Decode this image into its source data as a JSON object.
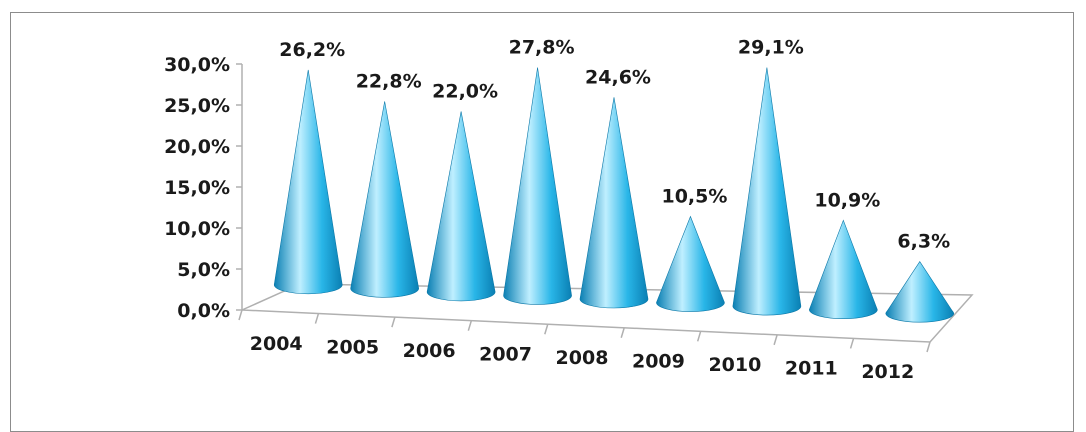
{
  "chart_data": {
    "type": "bar",
    "shape": "cone",
    "categories": [
      "2004",
      "2005",
      "2006",
      "2007",
      "2008",
      "2009",
      "2010",
      "2011",
      "2012"
    ],
    "values": [
      26.2,
      22.8,
      22.0,
      27.8,
      24.6,
      10.5,
      29.1,
      10.9,
      6.3
    ],
    "data_labels": [
      "26,2%",
      "22,8%",
      "22,0%",
      "27,8%",
      "24,6%",
      "10,5%",
      "29,1%",
      "10,9%",
      "6,3%"
    ],
    "y_tick_labels": [
      "0,0%",
      "5,0%",
      "10,0%",
      "15,0%",
      "20,0%",
      "25,0%",
      "30,0%"
    ],
    "ylim": [
      0,
      30
    ],
    "title": "",
    "xlabel": "",
    "ylabel": "",
    "legend": "none",
    "grid": false,
    "colors": {
      "cone_light": "#bfefff",
      "cone_mid": "#29b6e8",
      "cone_dark": "#0a7fb3",
      "axis": "#b0b0b0"
    }
  }
}
